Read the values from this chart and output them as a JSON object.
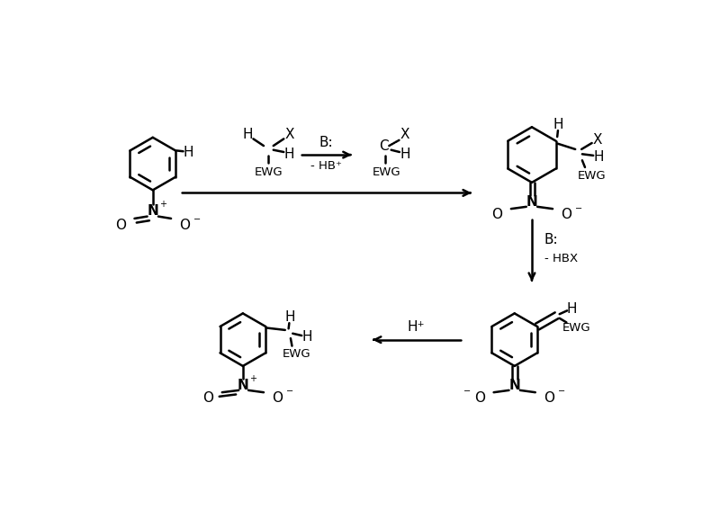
{
  "bg_color": "#ffffff",
  "line_color": "#000000",
  "lw": 1.8,
  "fs": 11,
  "fs_small": 9.5,
  "fig_w": 8.0,
  "fig_h": 5.87,
  "xlim": [
    0,
    8.0
  ],
  "ylim": [
    0,
    5.87
  ]
}
